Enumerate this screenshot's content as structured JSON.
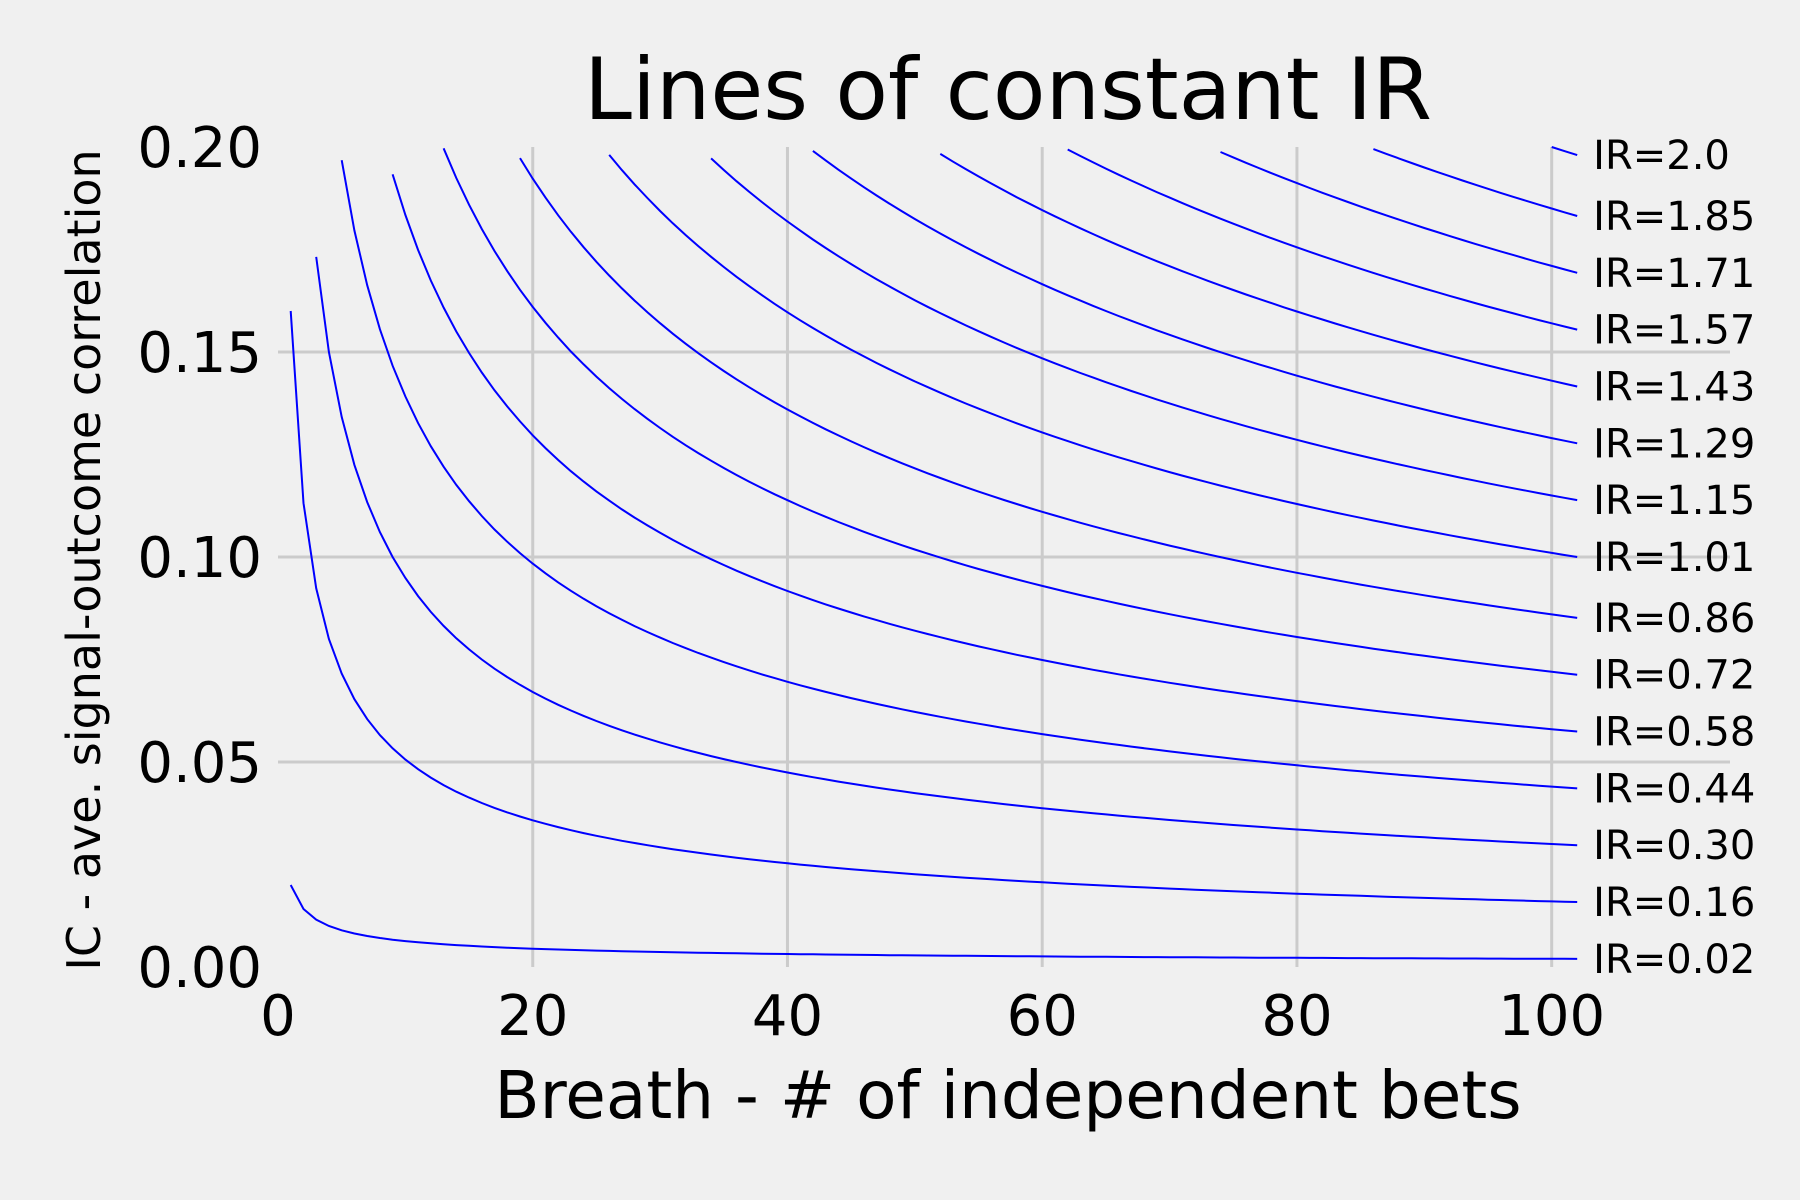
{
  "chart_data": {
    "type": "line",
    "title": "Lines of constant IR",
    "xlabel": "Breath - # of independent bets",
    "ylabel": "IC - ave. signal-outcome correlation",
    "xlim": [
      0,
      114
    ],
    "ylim": [
      0,
      0.2
    ],
    "xticks": [
      0,
      20,
      40,
      60,
      80,
      100
    ],
    "yticks": [
      0.0,
      0.05,
      0.1,
      0.15,
      0.2
    ],
    "xtick_labels": [
      "0",
      "20",
      "40",
      "60",
      "80",
      "100"
    ],
    "ytick_labels": [
      "0.00",
      "0.05",
      "0.10",
      "0.15",
      "0.20"
    ],
    "x_start": 1,
    "x_end": 102,
    "grid": true,
    "line_color": "#0000ff",
    "background_color": "#f0f0f0",
    "grid_color": "#cbcbcb",
    "formula": "IC = IR / sqrt(Breadth)",
    "series": [
      {
        "ir": 0.02,
        "label": "IR=0.02"
      },
      {
        "ir": 0.16,
        "label": "IR=0.16"
      },
      {
        "ir": 0.3,
        "label": "IR=0.30"
      },
      {
        "ir": 0.44,
        "label": "IR=0.44"
      },
      {
        "ir": 0.58,
        "label": "IR=0.58"
      },
      {
        "ir": 0.72,
        "label": "IR=0.72"
      },
      {
        "ir": 0.86,
        "label": "IR=0.86"
      },
      {
        "ir": 1.01,
        "label": "IR=1.01"
      },
      {
        "ir": 1.15,
        "label": "IR=1.15"
      },
      {
        "ir": 1.29,
        "label": "IR=1.29"
      },
      {
        "ir": 1.43,
        "label": "IR=1.43"
      },
      {
        "ir": 1.57,
        "label": "IR=1.57"
      },
      {
        "ir": 1.71,
        "label": "IR=1.71"
      },
      {
        "ir": 1.85,
        "label": "IR=1.85"
      },
      {
        "ir": 2.0,
        "label": "IR=2.0"
      }
    ]
  }
}
